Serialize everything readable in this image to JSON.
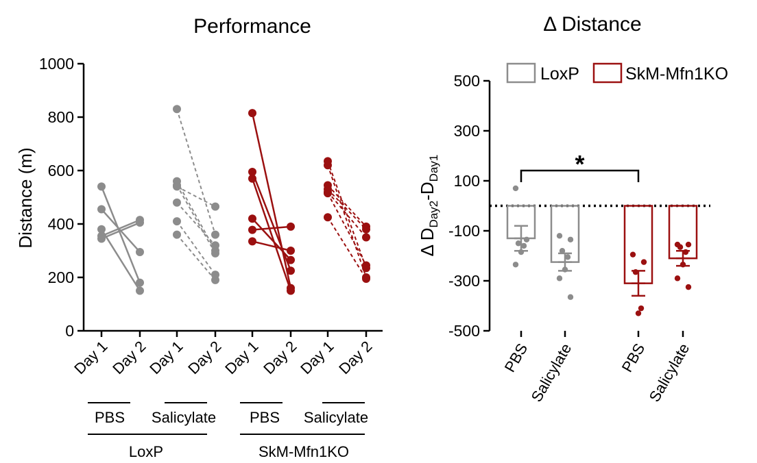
{
  "chart_data": [
    {
      "type": "scatter",
      "title": "Performance",
      "ylabel": "Distance (m)",
      "ylim": [
        0,
        1000
      ],
      "yticks": [
        0,
        200,
        400,
        600,
        800,
        1000
      ],
      "xticklabels": [
        "Day 1",
        "Day 2",
        "Day 1",
        "Day 2",
        "Day 1",
        "Day 2",
        "Day 1",
        "Day 2"
      ],
      "treatment_labels": [
        "PBS",
        "Salicylate",
        "PBS",
        "Salicylate"
      ],
      "genotype_labels": [
        "LoxP",
        "SkM-Mfn1KO"
      ],
      "groups": [
        {
          "name": "LoxP PBS",
          "color": "#8c8c8c",
          "dashed": false,
          "pairs": [
            [
              540,
              180
            ],
            [
              455,
              295
            ],
            [
              380,
              150
            ],
            [
              355,
              415
            ],
            [
              345,
              405
            ]
          ]
        },
        {
          "name": "LoxP Salicylate",
          "color": "#8c8c8c",
          "dashed": true,
          "pairs": [
            [
              830,
              360
            ],
            [
              560,
              300
            ],
            [
              545,
              290
            ],
            [
              540,
              465
            ],
            [
              480,
              320
            ],
            [
              410,
              210
            ],
            [
              360,
              190
            ]
          ]
        },
        {
          "name": "SkM-Mfn1KO PBS",
          "color": "#9b1010",
          "dashed": false,
          "pairs": [
            [
              815,
              160
            ],
            [
              595,
              225
            ],
            [
              570,
              150
            ],
            [
              420,
              265
            ],
            [
              378,
              390
            ],
            [
              335,
              300
            ]
          ]
        },
        {
          "name": "SkM-Mfn1KO Salicylate",
          "color": "#9b1010",
          "dashed": true,
          "pairs": [
            [
              635,
              235
            ],
            [
              620,
              200
            ],
            [
              545,
              390
            ],
            [
              530,
              380
            ],
            [
              520,
              350
            ],
            [
              515,
              245
            ],
            [
              425,
              195
            ]
          ]
        }
      ]
    },
    {
      "type": "bar",
      "title": "Δ Distance",
      "ylabel_prefix": "Δ D",
      "ylabel_sub1": "Day2",
      "ylabel_dash": "-D",
      "ylabel_sub2": "Day1",
      "ylim": [
        -500,
        500
      ],
      "yticks": [
        -500,
        -300,
        -100,
        100,
        300,
        500
      ],
      "categories": [
        "PBS",
        "Salicylate",
        "PBS",
        "Salicylate"
      ],
      "legend": [
        {
          "label": "LoxP",
          "color": "#8c8c8c"
        },
        {
          "label": "SkM-Mfn1KO",
          "color": "#9b1010"
        }
      ],
      "bars": [
        {
          "genotype": "LoxP",
          "mean": -130,
          "sem": 50,
          "points": [
            70,
            -135,
            -150,
            -160,
            -185,
            -235
          ]
        },
        {
          "genotype": "LoxP",
          "mean": -225,
          "sem": 35,
          "points": [
            -120,
            -135,
            -180,
            -205,
            -255,
            -290,
            -365
          ]
        },
        {
          "genotype": "SkM-Mfn1KO",
          "mean": -310,
          "sem": 50,
          "points": [
            -195,
            -225,
            -265,
            -410,
            -430
          ]
        },
        {
          "genotype": "SkM-Mfn1KO",
          "mean": -210,
          "sem": 30,
          "points": [
            -155,
            -155,
            -165,
            -185,
            -235,
            -290,
            -325
          ]
        }
      ],
      "reference_line": 0,
      "significance": {
        "from": 0,
        "to": 2,
        "label": "*"
      }
    }
  ]
}
